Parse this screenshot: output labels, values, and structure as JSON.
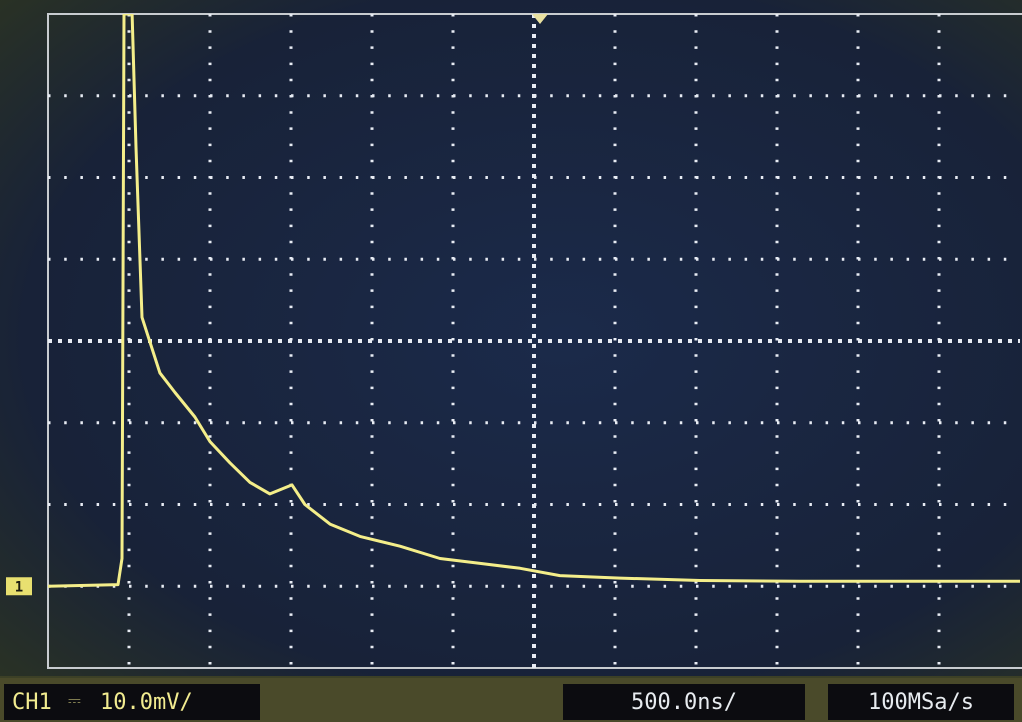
{
  "chart_data": {
    "type": "line",
    "x": [
      -3000,
      -2568,
      -2543,
      -2531,
      -2481,
      -2457,
      -2420,
      -2370,
      -2309,
      -2216,
      -2093,
      -2000,
      -1877,
      -1753,
      -1630,
      -1494,
      -1414,
      -1259,
      -1074,
      -827,
      -580,
      -333,
      -86,
      160,
      531,
      1025,
      1642,
      2259,
      3000
    ],
    "values": [
      0,
      0.2,
      3.4,
      70,
      70,
      53.7,
      32.9,
      29.8,
      26.1,
      23.7,
      20.7,
      17.7,
      15.1,
      12.7,
      11.3,
      12.4,
      10.0,
      7.6,
      6.1,
      4.9,
      3.4,
      2.8,
      2.2,
      1.3,
      1.0,
      0.7,
      0.6,
      0.6,
      0.6
    ],
    "color": "#f4ee8a",
    "xlim": [
      -3000,
      3000
    ],
    "ylim": [
      -10,
      70
    ]
  },
  "status_bar": {
    "channel": "CH1",
    "coupling": "⎓",
    "scale": "10.0mV/",
    "timebase": "500.0ns/",
    "sample_rate": "100MSa/s",
    "ground_marker": "1"
  }
}
